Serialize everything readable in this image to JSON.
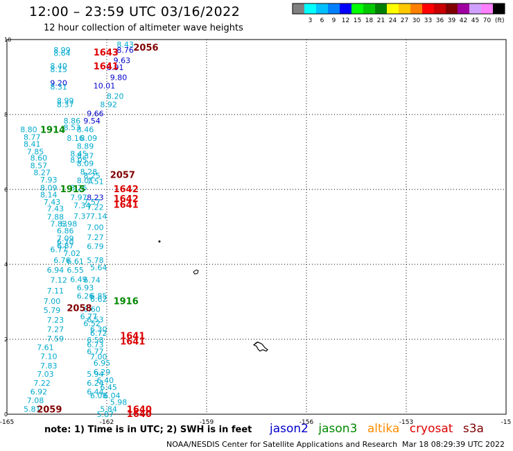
{
  "title": "12:00 – 23:59 UTC 03/16/2022",
  "subtitle": "12 hour collection of altimeter wave heights",
  "colorbar": {
    "unit": "(ft)",
    "bins": [
      {
        "label": "",
        "color": "#808080"
      },
      {
        "label": "3",
        "color": "#00ffff"
      },
      {
        "label": "6",
        "color": "#00c0ff"
      },
      {
        "label": "9",
        "color": "#0080ff"
      },
      {
        "label": "12",
        "color": "#0000ff"
      },
      {
        "label": "15",
        "color": "#00ff00"
      },
      {
        "label": "18",
        "color": "#00c800"
      },
      {
        "label": "21",
        "color": "#008000"
      },
      {
        "label": "24",
        "color": "#ffff00"
      },
      {
        "label": "27",
        "color": "#ffc800"
      },
      {
        "label": "30",
        "color": "#ff8000"
      },
      {
        "label": "33",
        "color": "#ff0000"
      },
      {
        "label": "36",
        "color": "#c80000"
      },
      {
        "label": "39",
        "color": "#800000"
      },
      {
        "label": "42",
        "color": "#a000a0"
      },
      {
        "label": "45",
        "color": "#d0a0ff"
      },
      {
        "label": "70",
        "color": "#ff80ff"
      },
      {
        "label": "",
        "color": "#000000"
      }
    ]
  },
  "note": "note:  1) Time is in UTC;  2) SWH is in feet",
  "satellites": [
    {
      "name": "jason2",
      "color": "#0000cc"
    },
    {
      "name": "jason3",
      "color": "#008800"
    },
    {
      "name": "altika",
      "color": "#ff8c00"
    },
    {
      "name": "cryosat",
      "color": "#dd0000"
    },
    {
      "name": "s3a",
      "color": "#800000"
    }
  ],
  "credit": "NOAA/NESDIS Center for Satellite Applications and Research",
  "timestamp": "Mar 18 08:29:39 UTC 2022",
  "chart_data": {
    "type": "scatter",
    "xlim": [
      -165,
      -150
    ],
    "ylim": [
      0,
      10
    ],
    "x_ticks": [
      "-165",
      "-162",
      "-159",
      "-156",
      "-153",
      "-15"
    ],
    "y_ticks": [
      "0",
      "2",
      "4",
      "6",
      "8",
      "10"
    ],
    "grid": true,
    "colors": {
      "cyan": "#00aacc",
      "blue": "#0000cc",
      "green": "#008800",
      "red": "#dd0000",
      "dark": "#800000"
    },
    "swh_labels": [
      {
        "t": "8.43",
        "x": -161.7,
        "y": 9.87,
        "c": "cyan"
      },
      {
        "t": "8.99",
        "x": -163.6,
        "y": 9.72,
        "c": "cyan"
      },
      {
        "t": "8.76",
        "x": -161.7,
        "y": 9.72,
        "c": "blue"
      },
      {
        "t": "8.64",
        "x": -163.6,
        "y": 9.64,
        "c": "cyan"
      },
      {
        "t": "9.63",
        "x": -161.8,
        "y": 9.44,
        "c": "blue"
      },
      {
        "t": "8.40",
        "x": -163.7,
        "y": 9.3,
        "c": "cyan"
      },
      {
        "t": "8.15",
        "x": -163.7,
        "y": 9.2,
        "c": "cyan"
      },
      {
        "t": "8.91",
        "x": -162.0,
        "y": 9.26,
        "c": "blue"
      },
      {
        "t": "9.80",
        "x": -161.9,
        "y": 8.99,
        "c": "blue"
      },
      {
        "t": "9.20",
        "x": -163.7,
        "y": 8.84,
        "c": "blue"
      },
      {
        "t": "8.31",
        "x": -163.7,
        "y": 8.74,
        "c": "cyan"
      },
      {
        "t": "10.01",
        "x": -162.4,
        "y": 8.77,
        "c": "blue"
      },
      {
        "t": "8.20",
        "x": -162.0,
        "y": 8.49,
        "c": "cyan"
      },
      {
        "t": "8.99",
        "x": -163.5,
        "y": 8.37,
        "c": "cyan"
      },
      {
        "t": "8.37",
        "x": -163.5,
        "y": 8.27,
        "c": "cyan"
      },
      {
        "t": "8.92",
        "x": -162.2,
        "y": 8.27,
        "c": "cyan"
      },
      {
        "t": "9.66",
        "x": -162.6,
        "y": 8.03,
        "c": "blue"
      },
      {
        "t": "8.86",
        "x": -163.3,
        "y": 7.83,
        "c": "cyan"
      },
      {
        "t": "9.54",
        "x": -162.7,
        "y": 7.83,
        "c": "blue"
      },
      {
        "t": "8.80",
        "x": -164.6,
        "y": 7.6,
        "c": "cyan"
      },
      {
        "t": "8.53",
        "x": -163.3,
        "y": 7.66,
        "c": "cyan"
      },
      {
        "t": "8.46",
        "x": -162.9,
        "y": 7.6,
        "c": "cyan"
      },
      {
        "t": "8.77",
        "x": -164.5,
        "y": 7.4,
        "c": "cyan"
      },
      {
        "t": "8.16",
        "x": -163.2,
        "y": 7.37,
        "c": "cyan"
      },
      {
        "t": "8.09",
        "x": -162.8,
        "y": 7.37,
        "c": "cyan"
      },
      {
        "t": "8.41",
        "x": -164.5,
        "y": 7.21,
        "c": "cyan"
      },
      {
        "t": "8.89",
        "x": -162.9,
        "y": 7.16,
        "c": "cyan"
      },
      {
        "t": "7.85",
        "x": -164.4,
        "y": 7.01,
        "c": "cyan"
      },
      {
        "t": "8.45",
        "x": -163.1,
        "y": 6.95,
        "c": "cyan"
      },
      {
        "t": "8.37",
        "x": -162.9,
        "y": 6.9,
        "c": "cyan"
      },
      {
        "t": "8.60",
        "x": -164.3,
        "y": 6.84,
        "c": "cyan"
      },
      {
        "t": "8.05",
        "x": -163.1,
        "y": 6.79,
        "c": "cyan"
      },
      {
        "t": "8.09",
        "x": -162.9,
        "y": 6.69,
        "c": "cyan"
      },
      {
        "t": "8.57",
        "x": -164.3,
        "y": 6.64,
        "c": "cyan"
      },
      {
        "t": "8.27",
        "x": -164.2,
        "y": 6.45,
        "c": "cyan"
      },
      {
        "t": "8.28",
        "x": -162.8,
        "y": 6.47,
        "c": "cyan"
      },
      {
        "t": "8.25",
        "x": -162.7,
        "y": 6.37,
        "c": "cyan"
      },
      {
        "t": "7.93",
        "x": -164.0,
        "y": 6.26,
        "c": "cyan"
      },
      {
        "t": "8.01",
        "x": -162.9,
        "y": 6.24,
        "c": "cyan"
      },
      {
        "t": "7.51",
        "x": -162.6,
        "y": 6.21,
        "c": "cyan"
      },
      {
        "t": "8.09",
        "x": -164.0,
        "y": 6.05,
        "c": "cyan"
      },
      {
        "t": "8.26",
        "x": -163.1,
        "y": 6.05,
        "c": "cyan"
      },
      {
        "t": "8.14",
        "x": -164.0,
        "y": 5.86,
        "c": "cyan"
      },
      {
        "t": "7.97",
        "x": -163.1,
        "y": 5.79,
        "c": "cyan"
      },
      {
        "t": "8.23",
        "x": -162.6,
        "y": 5.79,
        "c": "blue"
      },
      {
        "t": "7.43",
        "x": -163.9,
        "y": 5.67,
        "c": "cyan"
      },
      {
        "t": "7.57",
        "x": -162.7,
        "y": 5.67,
        "c": "cyan"
      },
      {
        "t": "7.34",
        "x": -163.0,
        "y": 5.57,
        "c": "cyan"
      },
      {
        "t": "7.22",
        "x": -162.6,
        "y": 5.53,
        "c": "cyan"
      },
      {
        "t": "7.43",
        "x": -163.8,
        "y": 5.49,
        "c": "cyan"
      },
      {
        "t": "7.37",
        "x": -163.0,
        "y": 5.29,
        "c": "cyan"
      },
      {
        "t": "7.14",
        "x": -162.5,
        "y": 5.29,
        "c": "cyan"
      },
      {
        "t": "7.88",
        "x": -163.8,
        "y": 5.27,
        "c": "cyan"
      },
      {
        "t": "7.83",
        "x": -163.7,
        "y": 5.08,
        "c": "cyan"
      },
      {
        "t": "6.98",
        "x": -163.4,
        "y": 5.08,
        "c": "cyan"
      },
      {
        "t": "7.00",
        "x": -162.6,
        "y": 4.99,
        "c": "cyan"
      },
      {
        "t": "6.86",
        "x": -163.5,
        "y": 4.9,
        "c": "cyan"
      },
      {
        "t": "7.27",
        "x": -162.6,
        "y": 4.72,
        "c": "cyan"
      },
      {
        "t": "7.09",
        "x": -163.5,
        "y": 4.69,
        "c": "cyan"
      },
      {
        "t": "6.70",
        "x": -163.5,
        "y": 4.6,
        "c": "cyan"
      },
      {
        "t": "6.87",
        "x": -163.5,
        "y": 4.5,
        "c": "cyan"
      },
      {
        "t": "6.79",
        "x": -162.6,
        "y": 4.48,
        "c": "cyan"
      },
      {
        "t": "6.77",
        "x": -163.7,
        "y": 4.4,
        "c": "cyan"
      },
      {
        "t": "7.02",
        "x": -163.3,
        "y": 4.3,
        "c": "cyan"
      },
      {
        "t": "6.76",
        "x": -163.6,
        "y": 4.11,
        "c": "cyan"
      },
      {
        "t": "6.61",
        "x": -163.2,
        "y": 4.08,
        "c": "cyan"
      },
      {
        "t": "5.78",
        "x": -162.6,
        "y": 4.11,
        "c": "cyan"
      },
      {
        "t": "5.64",
        "x": -162.5,
        "y": 3.92,
        "c": "cyan"
      },
      {
        "t": "6.94",
        "x": -163.8,
        "y": 3.85,
        "c": "cyan"
      },
      {
        "t": "6.55",
        "x": -163.2,
        "y": 3.85,
        "c": "cyan"
      },
      {
        "t": "7.12",
        "x": -163.7,
        "y": 3.58,
        "c": "cyan"
      },
      {
        "t": "6.49",
        "x": -163.1,
        "y": 3.6,
        "c": "cyan"
      },
      {
        "t": "6.74",
        "x": -162.7,
        "y": 3.58,
        "c": "cyan"
      },
      {
        "t": "7.11",
        "x": -163.8,
        "y": 3.3,
        "c": "cyan"
      },
      {
        "t": "6.93",
        "x": -162.9,
        "y": 3.38,
        "c": "cyan"
      },
      {
        "t": "6.26",
        "x": -162.9,
        "y": 3.16,
        "c": "cyan"
      },
      {
        "t": "6.85",
        "x": -162.5,
        "y": 3.16,
        "c": "cyan"
      },
      {
        "t": "7.00",
        "x": -163.9,
        "y": 3.02,
        "c": "cyan"
      },
      {
        "t": "6.62",
        "x": -162.5,
        "y": 3.07,
        "c": "cyan"
      },
      {
        "t": "6.60",
        "x": -162.7,
        "y": 2.81,
        "c": "cyan"
      },
      {
        "t": "5.79",
        "x": -163.9,
        "y": 2.78,
        "c": "cyan"
      },
      {
        "t": "6.77",
        "x": -162.8,
        "y": 2.61,
        "c": "cyan"
      },
      {
        "t": "6.53",
        "x": -162.6,
        "y": 2.53,
        "c": "cyan"
      },
      {
        "t": "7.23",
        "x": -163.8,
        "y": 2.52,
        "c": "cyan"
      },
      {
        "t": "6.52",
        "x": -162.7,
        "y": 2.43,
        "c": "cyan"
      },
      {
        "t": "7.27",
        "x": -163.8,
        "y": 2.27,
        "c": "cyan"
      },
      {
        "t": "6.30",
        "x": -162.5,
        "y": 2.27,
        "c": "cyan"
      },
      {
        "t": "6.72",
        "x": -162.5,
        "y": 2.17,
        "c": "cyan"
      },
      {
        "t": "7.59",
        "x": -163.8,
        "y": 2.02,
        "c": "cyan"
      },
      {
        "t": "6.58",
        "x": -162.6,
        "y": 1.98,
        "c": "cyan"
      },
      {
        "t": "6.73",
        "x": -162.6,
        "y": 1.86,
        "c": "cyan"
      },
      {
        "t": "7.61",
        "x": -164.1,
        "y": 1.79,
        "c": "cyan"
      },
      {
        "t": "6.77",
        "x": -162.6,
        "y": 1.68,
        "c": "cyan"
      },
      {
        "t": "7.10",
        "x": -164.0,
        "y": 1.55,
        "c": "cyan"
      },
      {
        "t": "7.00",
        "x": -162.5,
        "y": 1.54,
        "c": "cyan"
      },
      {
        "t": "6.95",
        "x": -162.4,
        "y": 1.37,
        "c": "cyan"
      },
      {
        "t": "7.83",
        "x": -164.0,
        "y": 1.3,
        "c": "cyan"
      },
      {
        "t": "6.29",
        "x": -162.4,
        "y": 1.13,
        "c": "cyan"
      },
      {
        "t": "7.03",
        "x": -164.1,
        "y": 1.07,
        "c": "cyan"
      },
      {
        "t": "5.94",
        "x": -162.6,
        "y": 1.07,
        "c": "cyan"
      },
      {
        "t": "6.40",
        "x": -162.3,
        "y": 0.91,
        "c": "cyan"
      },
      {
        "t": "7.22",
        "x": -164.2,
        "y": 0.83,
        "c": "cyan"
      },
      {
        "t": "6.24",
        "x": -162.6,
        "y": 0.83,
        "c": "cyan"
      },
      {
        "t": "6.45",
        "x": -162.2,
        "y": 0.72,
        "c": "cyan"
      },
      {
        "t": "6.92",
        "x": -164.3,
        "y": 0.6,
        "c": "cyan"
      },
      {
        "t": "6.44",
        "x": -162.6,
        "y": 0.6,
        "c": "cyan"
      },
      {
        "t": "6.08",
        "x": -162.5,
        "y": 0.5,
        "c": "cyan"
      },
      {
        "t": "6.04",
        "x": -162.1,
        "y": 0.5,
        "c": "cyan"
      },
      {
        "t": "7.08",
        "x": -164.4,
        "y": 0.37,
        "c": "cyan"
      },
      {
        "t": "5.98",
        "x": -161.9,
        "y": 0.32,
        "c": "cyan"
      },
      {
        "t": "5.81",
        "x": -164.5,
        "y": 0.14,
        "c": "cyan"
      },
      {
        "t": "5.84",
        "x": -162.2,
        "y": 0.14,
        "c": "cyan"
      },
      {
        "t": "5.87",
        "x": -162.3,
        "y": 0.0,
        "c": "cyan"
      }
    ],
    "time_labels": [
      {
        "t": "2056",
        "x": -161.2,
        "y": 9.8,
        "c": "dark"
      },
      {
        "t": "1643",
        "x": -162.4,
        "y": 9.67,
        "c": "red"
      },
      {
        "t": "1641",
        "x": -162.4,
        "y": 9.3,
        "c": "red"
      },
      {
        "t": "1914",
        "x": -164.0,
        "y": 7.6,
        "c": "green"
      },
      {
        "t": "2057",
        "x": -161.9,
        "y": 6.4,
        "c": "dark"
      },
      {
        "t": "1915",
        "x": -163.4,
        "y": 6.02,
        "c": "green"
      },
      {
        "t": "1642",
        "x": -161.8,
        "y": 6.02,
        "c": "red"
      },
      {
        "t": "1642",
        "x": -161.8,
        "y": 5.76,
        "c": "red"
      },
      {
        "t": "1641",
        "x": -161.8,
        "y": 5.6,
        "c": "red"
      },
      {
        "t": "1916",
        "x": -161.8,
        "y": 3.03,
        "c": "green"
      },
      {
        "t": "2058",
        "x": -163.2,
        "y": 2.84,
        "c": "dark"
      },
      {
        "t": "1641",
        "x": -161.6,
        "y": 2.1,
        "c": "red"
      },
      {
        "t": "1641",
        "x": -161.6,
        "y": 1.95,
        "c": "red"
      },
      {
        "t": "2059",
        "x": -164.1,
        "y": 0.14,
        "c": "dark"
      },
      {
        "t": "1640",
        "x": -161.4,
        "y": 0.14,
        "c": "red"
      },
      {
        "t": "1640",
        "x": -161.4,
        "y": 0.02,
        "c": "red"
      }
    ]
  }
}
